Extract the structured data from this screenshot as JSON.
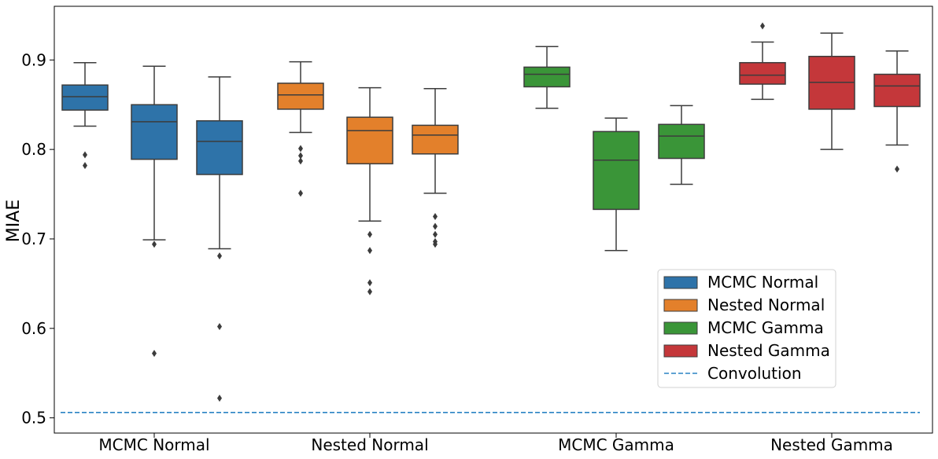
{
  "chart_data": {
    "type": "box",
    "ylabel": "MIAE",
    "ylim": [
      0.483,
      0.96
    ],
    "yticks": [
      0.5,
      0.6,
      0.7,
      0.8,
      0.9
    ],
    "categories": [
      "MCMC Normal",
      "Nested Normal",
      "MCMC Gamma",
      "Nested Gamma"
    ],
    "legend": {
      "placement": "lower-right",
      "entries": [
        {
          "label": "MCMC Normal",
          "kind": "patch",
          "color": "#2e73a9"
        },
        {
          "label": "Nested Normal",
          "kind": "patch",
          "color": "#e3802b"
        },
        {
          "label": "MCMC Gamma",
          "kind": "patch",
          "color": "#3a9538"
        },
        {
          "label": "Nested Gamma",
          "kind": "patch",
          "color": "#c4373a"
        },
        {
          "label": "Convolution",
          "kind": "dashed-line",
          "color": "#2a83c4"
        }
      ]
    },
    "reference_line": {
      "name": "Convolution",
      "y": 0.506,
      "color": "#2a83c4"
    },
    "groups": [
      {
        "category": "MCMC Normal",
        "color": "#2e73a9",
        "boxes": [
          {
            "whisker_low": 0.826,
            "q1": 0.844,
            "median": 0.859,
            "q3": 0.872,
            "whisker_high": 0.897,
            "outliers": [
              0.794,
              0.782
            ]
          },
          {
            "whisker_low": 0.699,
            "q1": 0.789,
            "median": 0.831,
            "q3": 0.85,
            "whisker_high": 0.893,
            "outliers": [
              0.694,
              0.572
            ]
          },
          {
            "whisker_low": 0.689,
            "q1": 0.772,
            "median": 0.809,
            "q3": 0.832,
            "whisker_high": 0.881,
            "outliers": [
              0.681,
              0.602,
              0.522
            ]
          }
        ]
      },
      {
        "category": "Nested Normal",
        "color": "#e3802b",
        "boxes": [
          {
            "whisker_low": 0.819,
            "q1": 0.845,
            "median": 0.861,
            "q3": 0.874,
            "whisker_high": 0.898,
            "outliers": [
              0.801,
              0.793,
              0.787,
              0.751
            ]
          },
          {
            "whisker_low": 0.72,
            "q1": 0.784,
            "median": 0.821,
            "q3": 0.836,
            "whisker_high": 0.869,
            "outliers": [
              0.705,
              0.687,
              0.651,
              0.641
            ]
          },
          {
            "whisker_low": 0.751,
            "q1": 0.795,
            "median": 0.816,
            "q3": 0.827,
            "whisker_high": 0.868,
            "outliers": [
              0.725,
              0.714,
              0.705,
              0.697,
              0.694
            ]
          }
        ]
      },
      {
        "category": "MCMC Gamma",
        "color": "#3a9538",
        "boxes": [
          {
            "whisker_low": 0.846,
            "q1": 0.87,
            "median": 0.884,
            "q3": 0.892,
            "whisker_high": 0.915,
            "outliers": []
          },
          {
            "whisker_low": 0.687,
            "q1": 0.733,
            "median": 0.788,
            "q3": 0.82,
            "whisker_high": 0.835,
            "outliers": []
          },
          {
            "whisker_low": 0.761,
            "q1": 0.79,
            "median": 0.815,
            "q3": 0.828,
            "whisker_high": 0.849,
            "outliers": []
          }
        ]
      },
      {
        "category": "Nested Gamma",
        "color": "#c4373a",
        "boxes": [
          {
            "whisker_low": 0.856,
            "q1": 0.873,
            "median": 0.883,
            "q3": 0.897,
            "whisker_high": 0.92,
            "outliers": [
              0.938
            ]
          },
          {
            "whisker_low": 0.8,
            "q1": 0.845,
            "median": 0.875,
            "q3": 0.904,
            "whisker_high": 0.93,
            "outliers": []
          },
          {
            "whisker_low": 0.805,
            "q1": 0.848,
            "median": 0.871,
            "q3": 0.884,
            "whisker_high": 0.91,
            "outliers": [
              0.778
            ]
          }
        ]
      }
    ]
  }
}
